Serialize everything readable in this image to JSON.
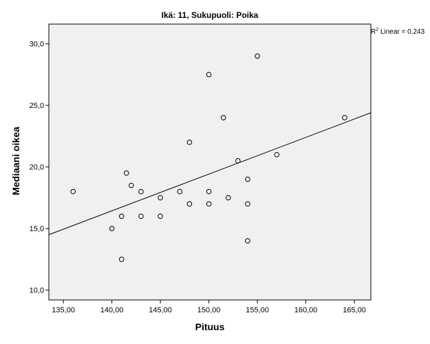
{
  "chart_data": {
    "type": "scatter",
    "title": "Ikä: 11, Sukupuoli: Poika",
    "xlabel": "Pituus",
    "ylabel": "Mediaani oikea",
    "xlim": [
      133.5,
      166.7
    ],
    "ylim": [
      9.2,
      31.6
    ],
    "x_ticks": [
      135,
      140,
      145,
      150,
      155,
      160,
      165
    ],
    "x_tick_labels": [
      "135,00",
      "140,00",
      "145,00",
      "150,00",
      "155,00",
      "160,00",
      "165,00"
    ],
    "y_ticks": [
      10,
      15,
      20,
      25,
      30
    ],
    "y_tick_labels": [
      "10,0",
      "15,0",
      "20,0",
      "25,0",
      "30,0"
    ],
    "points": [
      {
        "x": 136,
        "y": 18
      },
      {
        "x": 140,
        "y": 15
      },
      {
        "x": 141,
        "y": 16
      },
      {
        "x": 141,
        "y": 12.5
      },
      {
        "x": 141.5,
        "y": 19.5
      },
      {
        "x": 142,
        "y": 18.5
      },
      {
        "x": 143,
        "y": 18
      },
      {
        "x": 143,
        "y": 16
      },
      {
        "x": 145,
        "y": 17.5
      },
      {
        "x": 145,
        "y": 16
      },
      {
        "x": 147,
        "y": 18
      },
      {
        "x": 148,
        "y": 22
      },
      {
        "x": 148,
        "y": 17
      },
      {
        "x": 150,
        "y": 27.5
      },
      {
        "x": 150,
        "y": 18
      },
      {
        "x": 150,
        "y": 17
      },
      {
        "x": 151.5,
        "y": 24
      },
      {
        "x": 152,
        "y": 17.5
      },
      {
        "x": 153,
        "y": 20.5
      },
      {
        "x": 154,
        "y": 19
      },
      {
        "x": 154,
        "y": 17
      },
      {
        "x": 154,
        "y": 14
      },
      {
        "x": 155,
        "y": 29
      },
      {
        "x": 157,
        "y": 21
      },
      {
        "x": 164,
        "y": 24
      }
    ],
    "fit_line": {
      "type": "linear",
      "x": [
        133.5,
        166.7
      ],
      "y": [
        14.5,
        24.4
      ]
    },
    "r2_label": {
      "prefix": "R",
      "superscript": "2",
      "suffix": " Linear = 0,243"
    },
    "colors": {
      "background": "#f0f0f0",
      "marker": "#000000",
      "line": "#000000"
    },
    "marker": "open-circle",
    "grid": false,
    "legend": "none"
  }
}
